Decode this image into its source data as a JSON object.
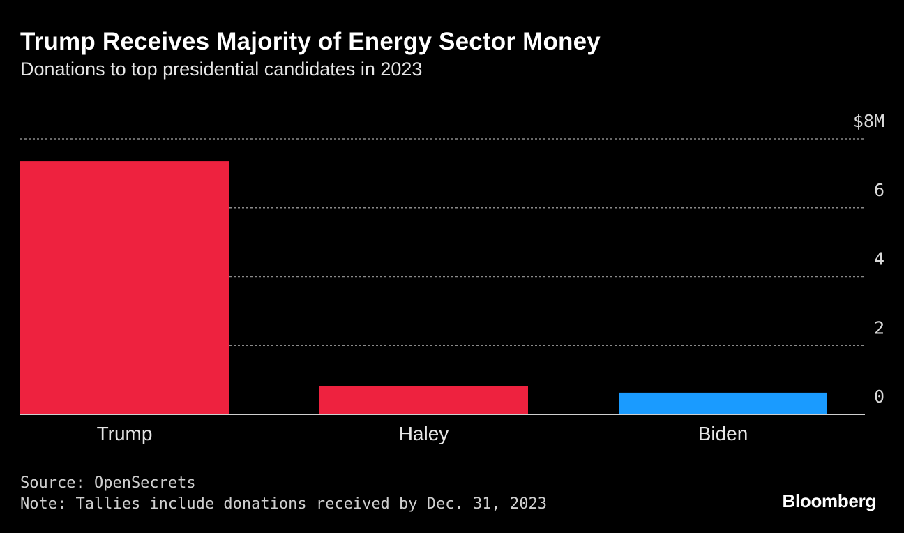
{
  "title": "Trump Receives Majority of Energy Sector Money",
  "subtitle": "Donations to top presidential candidates in 2023",
  "footer": {
    "source": "Source: OpenSecrets",
    "note": "Note: Tallies include donations received by Dec. 31, 2023",
    "brand": "Bloomberg"
  },
  "chart_data": {
    "type": "bar",
    "categories": [
      "Trump",
      "Haley",
      "Biden"
    ],
    "values": [
      7.35,
      0.82,
      0.63
    ],
    "colors": [
      "#ee223f",
      "#ee223f",
      "#1a9bff"
    ],
    "ylim": [
      0,
      8
    ],
    "yticks": [
      0,
      2,
      4,
      6,
      8
    ],
    "ytick_labels": [
      "0",
      "2",
      "4",
      "6",
      "$8M"
    ],
    "grid": true,
    "xlabel": "",
    "ylabel": ""
  }
}
